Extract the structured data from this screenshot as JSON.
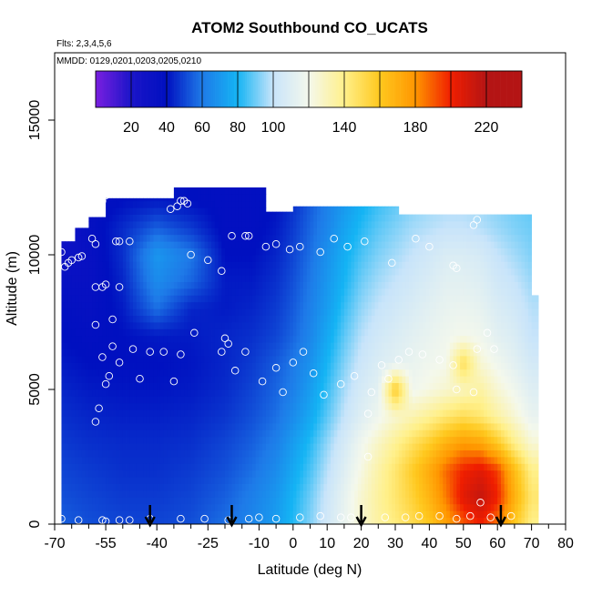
{
  "chart_data": {
    "type": "heatmap",
    "title": "ATOM2 Southbound CO_UCATS",
    "subtitle_flights": "Flts: 2,3,4,5,6",
    "subtitle_dates": "MMDD: 0129,0201,0203,0205,0210",
    "xlabel": "Latitude (deg N)",
    "ylabel": "Altitude (m)",
    "xlim": [
      -70,
      80
    ],
    "ylim": [
      0,
      17500
    ],
    "x_ticks": [
      -70,
      -55,
      -40,
      -25,
      -10,
      0,
      10,
      20,
      30,
      40,
      50,
      60,
      70,
      80
    ],
    "x_minor_ticks": [
      -65,
      -60,
      -50,
      -45,
      -35,
      -30,
      -20,
      -15,
      -5,
      5,
      15,
      25,
      35,
      45,
      55,
      65,
      75
    ],
    "y_ticks": [
      0,
      5000,
      10000,
      15000
    ],
    "colorbar": {
      "range": [
        10,
        235
      ],
      "tick_values": [
        20,
        40,
        60,
        80,
        100,
        140,
        180,
        220
      ],
      "boundaries": [
        10,
        20,
        40,
        60,
        80,
        100,
        120,
        140,
        160,
        180,
        200,
        220,
        235
      ],
      "colors": [
        "#7a1fe0",
        "#1a14c8",
        "#0010c0",
        "#1e7ae8",
        "#14b4f4",
        "#c8e4fa",
        "#f4f8ec",
        "#fff08a",
        "#ffc81e",
        "#ff9600",
        "#f01e00",
        "#b41414"
      ]
    },
    "arrow_latitudes": [
      -42,
      -18,
      20,
      61
    ],
    "profile_top_by_lat": [
      [
        -68,
        10500
      ],
      [
        -64,
        11000
      ],
      [
        -60,
        11400
      ],
      [
        -55,
        12100
      ],
      [
        -35,
        12500
      ],
      [
        -10,
        12500
      ],
      [
        -8,
        11600
      ],
      [
        0,
        11800
      ],
      [
        30,
        11800
      ],
      [
        31,
        11500
      ],
      [
        69,
        11500
      ],
      [
        70,
        8500
      ],
      [
        72,
        5500
      ],
      [
        72,
        0
      ]
    ],
    "field": {
      "lats": [
        -68,
        -60,
        -50,
        -40,
        -30,
        -20,
        -12,
        -5,
        0,
        5,
        10,
        15,
        20,
        25,
        30,
        35,
        40,
        45,
        50,
        55,
        60,
        65,
        70
      ],
      "alts": [
        0,
        1000,
        2000,
        3000,
        4000,
        5000,
        6000,
        7000,
        8000,
        9000,
        10000,
        11000,
        12000
      ],
      "values": [
        [
          55,
          52,
          50,
          50,
          52,
          58,
          64,
          72,
          82,
          92,
          104,
          115,
          126,
          135,
          142,
          150,
          160,
          175,
          190,
          200,
          185,
          160,
          140
        ],
        [
          52,
          50,
          48,
          48,
          50,
          55,
          62,
          70,
          80,
          90,
          102,
          114,
          126,
          136,
          145,
          155,
          168,
          185,
          205,
          215,
          200,
          170,
          145
        ],
        [
          50,
          48,
          46,
          46,
          48,
          52,
          58,
          66,
          76,
          86,
          98,
          110,
          122,
          134,
          145,
          158,
          172,
          188,
          200,
          205,
          195,
          165,
          140
        ],
        [
          48,
          46,
          45,
          45,
          46,
          50,
          55,
          62,
          72,
          82,
          94,
          106,
          118,
          128,
          138,
          148,
          158,
          170,
          178,
          175,
          160,
          140,
          125
        ],
        [
          46,
          44,
          43,
          43,
          44,
          47,
          52,
          58,
          66,
          76,
          88,
          100,
          110,
          118,
          126,
          132,
          138,
          145,
          150,
          145,
          135,
          125,
          115
        ],
        [
          44,
          42,
          41,
          41,
          42,
          45,
          50,
          56,
          62,
          72,
          84,
          96,
          106,
          112,
          160,
          118,
          122,
          126,
          130,
          135,
          125,
          118,
          110
        ],
        [
          42,
          40,
          40,
          40,
          41,
          44,
          48,
          54,
          60,
          68,
          80,
          92,
          102,
          108,
          112,
          115,
          118,
          120,
          150,
          125,
          118,
          112,
          105
        ],
        [
          40,
          38,
          40,
          42,
          42,
          44,
          46,
          50,
          56,
          64,
          76,
          88,
          98,
          104,
          108,
          112,
          115,
          118,
          120,
          118,
          112,
          108,
          100
        ],
        [
          38,
          36,
          42,
          58,
          44,
          42,
          44,
          48,
          54,
          62,
          72,
          84,
          94,
          100,
          104,
          108,
          112,
          115,
          116,
          114,
          108,
          104,
          98
        ],
        [
          35,
          34,
          44,
          66,
          56,
          42,
          42,
          46,
          52,
          60,
          70,
          80,
          90,
          96,
          100,
          104,
          108,
          112,
          112,
          110,
          104,
          100,
          95
        ],
        [
          30,
          34,
          46,
          70,
          60,
          40,
          40,
          44,
          50,
          58,
          68,
          78,
          86,
          92,
          96,
          100,
          104,
          108,
          108,
          106,
          100,
          96,
          92
        ],
        [
          28,
          36,
          45,
          55,
          48,
          38,
          38,
          42,
          48,
          56,
          64,
          74,
          82,
          88,
          92,
          96,
          98,
          100,
          100,
          98,
          95,
          92,
          90
        ],
        [
          30,
          36,
          40,
          42,
          40,
          38,
          38,
          40,
          46,
          54,
          62,
          70,
          78,
          84,
          88,
          92,
          95,
          96,
          96,
          95,
          92,
          90,
          88
        ]
      ]
    },
    "points": [
      [
        -68,
        10100
      ],
      [
        -67,
        9550
      ],
      [
        -66,
        9700
      ],
      [
        -65,
        9800
      ],
      [
        -63,
        9900
      ],
      [
        -62,
        9950
      ],
      [
        -59,
        10600
      ],
      [
        -58,
        10400
      ],
      [
        -57,
        11800
      ],
      [
        -56,
        12000
      ],
      [
        -55,
        12200
      ],
      [
        -52,
        10500
      ],
      [
        -51,
        10500
      ],
      [
        -48,
        10500
      ],
      [
        -36,
        11700
      ],
      [
        -34,
        11800
      ],
      [
        -33,
        12000
      ],
      [
        -32,
        12000
      ],
      [
        -31,
        11900
      ],
      [
        -30,
        10000
      ],
      [
        -25,
        9800
      ],
      [
        -21,
        9400
      ],
      [
        -18,
        10700
      ],
      [
        -14,
        10700
      ],
      [
        -13,
        10700
      ],
      [
        -8,
        10300
      ],
      [
        -5,
        10400
      ],
      [
        -1,
        10200
      ],
      [
        2,
        10300
      ],
      [
        8,
        10100
      ],
      [
        12,
        10600
      ],
      [
        16,
        10300
      ],
      [
        21,
        10500
      ],
      [
        29,
        9700
      ],
      [
        36,
        10600
      ],
      [
        40,
        10300
      ],
      [
        47,
        9600
      ],
      [
        48,
        9500
      ],
      [
        53,
        11100
      ],
      [
        54,
        11300
      ],
      [
        -58,
        8800
      ],
      [
        -56,
        8800
      ],
      [
        -55,
        8900
      ],
      [
        -53,
        7600
      ],
      [
        -51,
        8800
      ],
      [
        -58,
        7400
      ],
      [
        -56,
        6200
      ],
      [
        -55,
        5200
      ],
      [
        -54,
        5500
      ],
      [
        -57,
        4300
      ],
      [
        -58,
        3800
      ],
      [
        -53,
        6600
      ],
      [
        -51,
        6000
      ],
      [
        -47,
        6500
      ],
      [
        -45,
        5400
      ],
      [
        -42,
        6400
      ],
      [
        -38,
        6400
      ],
      [
        -35,
        5300
      ],
      [
        -33,
        6300
      ],
      [
        -29,
        7100
      ],
      [
        -21,
        6400
      ],
      [
        -20,
        6900
      ],
      [
        -19,
        6700
      ],
      [
        -17,
        5700
      ],
      [
        -14,
        6400
      ],
      [
        -9,
        5300
      ],
      [
        -5,
        5800
      ],
      [
        -3,
        4900
      ],
      [
        0,
        6000
      ],
      [
        3,
        6400
      ],
      [
        6,
        5600
      ],
      [
        9,
        4800
      ],
      [
        14,
        5200
      ],
      [
        18,
        5500
      ],
      [
        22,
        4100
      ],
      [
        23,
        4900
      ],
      [
        26,
        5900
      ],
      [
        28,
        5400
      ],
      [
        31,
        6100
      ],
      [
        34,
        6400
      ],
      [
        38,
        6300
      ],
      [
        43,
        6100
      ],
      [
        47,
        5900
      ],
      [
        48,
        5000
      ],
      [
        53,
        4900
      ],
      [
        54,
        6500
      ],
      [
        57,
        7100
      ],
      [
        59,
        6500
      ],
      [
        -68,
        200
      ],
      [
        -63,
        150
      ],
      [
        -56,
        150
      ],
      [
        -55,
        100
      ],
      [
        -51,
        150
      ],
      [
        -48,
        150
      ],
      [
        -42,
        200
      ],
      [
        -33,
        200
      ],
      [
        -26,
        200
      ],
      [
        -19,
        150
      ],
      [
        -13,
        200
      ],
      [
        -10,
        250
      ],
      [
        -5,
        200
      ],
      [
        2,
        250
      ],
      [
        8,
        300
      ],
      [
        14,
        250
      ],
      [
        17,
        250
      ],
      [
        22,
        2500
      ],
      [
        27,
        250
      ],
      [
        33,
        250
      ],
      [
        37,
        300
      ],
      [
        43,
        300
      ],
      [
        48,
        200
      ],
      [
        52,
        300
      ],
      [
        55,
        800
      ],
      [
        58,
        250
      ],
      [
        64,
        300
      ]
    ]
  }
}
